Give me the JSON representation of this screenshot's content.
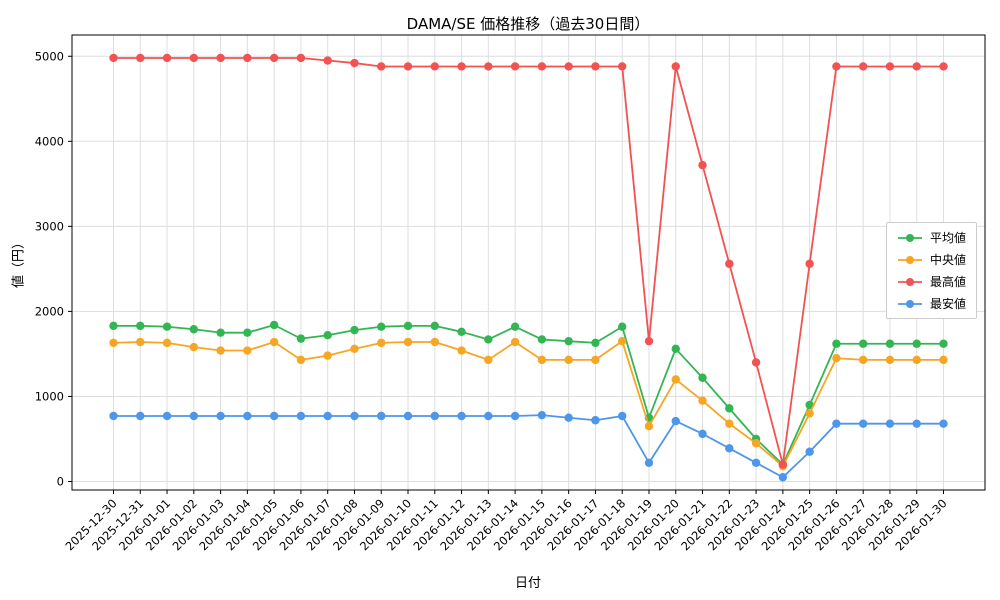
{
  "chart_data": {
    "type": "line",
    "title": "DAMA/SE 価格推移（過去30日間）",
    "xlabel": "日付",
    "ylabel": "値（円）",
    "x": [
      "2025-12-30",
      "2025-12-31",
      "2026-01-01",
      "2026-01-02",
      "2026-01-03",
      "2026-01-04",
      "2026-01-05",
      "2026-01-06",
      "2026-01-07",
      "2026-01-08",
      "2026-01-09",
      "2026-01-10",
      "2026-01-11",
      "2026-01-12",
      "2026-01-13",
      "2026-01-14",
      "2026-01-15",
      "2026-01-16",
      "2026-01-17",
      "2026-01-18",
      "2026-01-19",
      "2026-01-20",
      "2026-01-21",
      "2026-01-22",
      "2026-01-23",
      "2026-01-24",
      "2026-01-25",
      "2026-01-26",
      "2026-01-27",
      "2026-01-28",
      "2026-01-29",
      "2026-01-30"
    ],
    "series": [
      {
        "name": "平均値",
        "color": "#33b554",
        "values": [
          1830,
          1830,
          1820,
          1790,
          1750,
          1750,
          1840,
          1680,
          1720,
          1780,
          1820,
          1830,
          1830,
          1760,
          1670,
          1820,
          1670,
          1650,
          1630,
          1820,
          750,
          1560,
          1220,
          860,
          500,
          200,
          900,
          1620,
          1620,
          1620,
          1620,
          1620
        ]
      },
      {
        "name": "中央値",
        "color": "#f6a623",
        "values": [
          1630,
          1640,
          1630,
          1580,
          1540,
          1540,
          1640,
          1430,
          1480,
          1560,
          1630,
          1640,
          1640,
          1540,
          1430,
          1640,
          1430,
          1430,
          1430,
          1650,
          650,
          1200,
          950,
          680,
          450,
          180,
          800,
          1450,
          1430,
          1430,
          1430,
          1430
        ]
      },
      {
        "name": "最高値",
        "color": "#f25252",
        "values": [
          4980,
          4980,
          4980,
          4980,
          4980,
          4980,
          4980,
          4980,
          4950,
          4920,
          4880,
          4880,
          4880,
          4880,
          4880,
          4880,
          4880,
          4880,
          4880,
          4880,
          1650,
          4880,
          3720,
          2560,
          1400,
          200,
          2560,
          4880,
          4880,
          4880,
          4880,
          4880
        ]
      },
      {
        "name": "最安値",
        "color": "#4d96e9",
        "values": [
          770,
          770,
          770,
          770,
          770,
          770,
          770,
          770,
          770,
          770,
          770,
          770,
          770,
          770,
          770,
          770,
          780,
          750,
          720,
          770,
          220,
          710,
          560,
          390,
          220,
          50,
          350,
          680,
          680,
          680,
          680,
          680
        ]
      }
    ],
    "ylim": [
      0,
      5000
    ],
    "yticks": [
      0,
      1000,
      2000,
      3000,
      4000,
      5000
    ],
    "grid": true,
    "legend_position": "right",
    "colors": {
      "grid": "#dedede",
      "axis": "#000000",
      "background": "#ffffff"
    }
  }
}
